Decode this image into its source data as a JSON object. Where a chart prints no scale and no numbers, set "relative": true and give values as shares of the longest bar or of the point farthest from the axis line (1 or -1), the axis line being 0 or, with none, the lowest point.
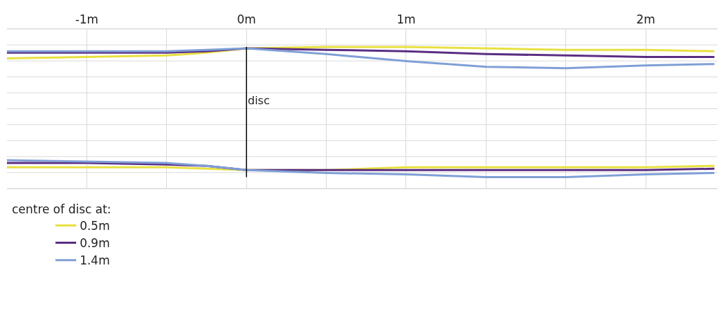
{
  "chart_data": {
    "type": "line",
    "relative": true,
    "x": [
      -1.5,
      -1,
      -0.5,
      -0.25,
      0,
      0.5,
      1,
      1.5,
      2,
      2.5,
      2.93
    ],
    "xlim": [
      -1.5,
      2.95
    ],
    "xticks": [
      {
        "value": -1,
        "label": "-1m"
      },
      {
        "value": -0.5,
        "label": null
      },
      {
        "value": 0,
        "label": "0m"
      },
      {
        "value": 0.5,
        "label": null
      },
      {
        "value": 1,
        "label": "1m"
      },
      {
        "value": 1.5,
        "label": null
      },
      {
        "value": 2,
        "label": null
      },
      {
        "value": 2.5,
        "label": "2m"
      }
    ],
    "series": [
      {
        "name": "0.5m",
        "color": "#e8e040",
        "values": [
          0.92,
          0.93,
          0.94,
          0.96,
          0.99,
          1.0,
          1.0,
          0.99,
          0.98,
          0.98,
          0.97
        ]
      },
      {
        "name": "0.9m",
        "color": "#5a2d82",
        "values": [
          0.96,
          0.96,
          0.96,
          0.97,
          0.99,
          0.98,
          0.97,
          0.95,
          0.94,
          0.93,
          0.93
        ]
      },
      {
        "name": "1.4m",
        "color": "#7f9fd6",
        "values": [
          0.97,
          0.97,
          0.97,
          0.98,
          0.99,
          0.95,
          0.9,
          0.86,
          0.85,
          0.87,
          0.88
        ]
      },
      {
        "color": "#e8e040",
        "values": [
          0.15,
          0.15,
          0.15,
          0.14,
          0.13,
          0.13,
          0.15,
          0.15,
          0.15,
          0.15,
          0.16
        ]
      },
      {
        "color": "#5a2d82",
        "values": [
          0.18,
          0.18,
          0.17,
          0.16,
          0.13,
          0.13,
          0.13,
          0.13,
          0.13,
          0.13,
          0.14
        ]
      },
      {
        "color": "#7f9fd6",
        "values": [
          0.2,
          0.19,
          0.18,
          0.16,
          0.13,
          0.11,
          0.1,
          0.08,
          0.08,
          0.1,
          0.11
        ]
      }
    ],
    "ref_lines": [
      {
        "axis": "x",
        "value": 0,
        "label": "disc",
        "color": "#000000"
      }
    ],
    "grid": true,
    "legend": "bottom left",
    "legend_title": "centre of disc at:"
  }
}
